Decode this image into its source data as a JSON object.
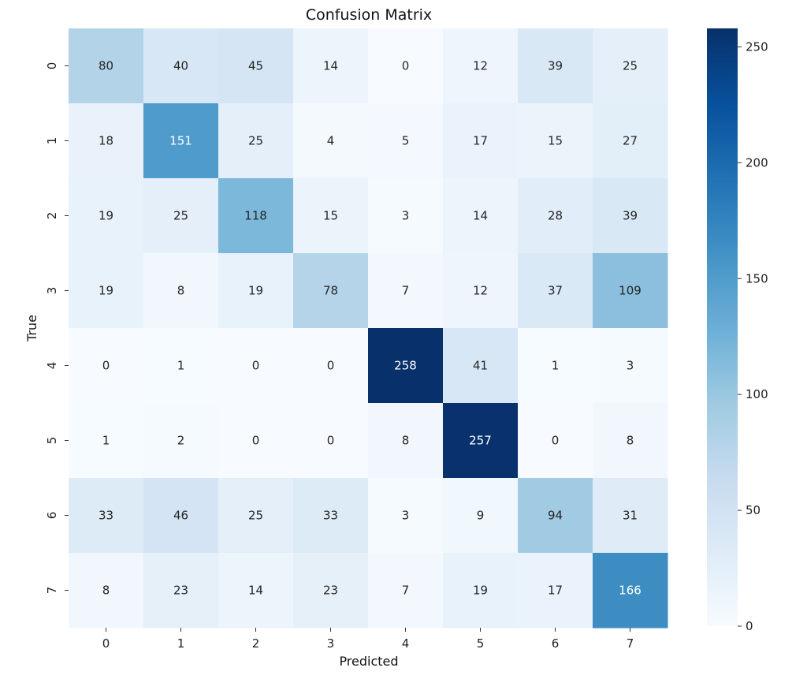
{
  "chart_data": {
    "type": "heatmap",
    "title": "Confusion Matrix",
    "xlabel": "Predicted",
    "ylabel": "True",
    "x_categories": [
      "0",
      "1",
      "2",
      "3",
      "4",
      "5",
      "6",
      "7"
    ],
    "y_categories": [
      "0",
      "1",
      "2",
      "3",
      "4",
      "5",
      "6",
      "7"
    ],
    "values": [
      [
        80,
        40,
        45,
        14,
        0,
        12,
        39,
        25
      ],
      [
        18,
        151,
        25,
        4,
        5,
        17,
        15,
        27
      ],
      [
        19,
        25,
        118,
        15,
        3,
        14,
        28,
        39
      ],
      [
        19,
        8,
        19,
        78,
        7,
        12,
        37,
        109
      ],
      [
        0,
        1,
        0,
        0,
        258,
        41,
        1,
        3
      ],
      [
        1,
        2,
        0,
        0,
        8,
        257,
        0,
        8
      ],
      [
        33,
        46,
        25,
        33,
        3,
        9,
        94,
        31
      ],
      [
        8,
        23,
        14,
        23,
        7,
        19,
        17,
        166
      ]
    ],
    "colormap": "Blues",
    "colorbar": {
      "vmin": 0,
      "vmax": 258,
      "ticks": [
        0,
        50,
        100,
        150,
        200,
        250
      ]
    }
  }
}
